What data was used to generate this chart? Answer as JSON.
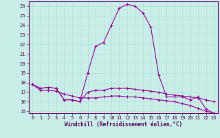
{
  "xlabel": "Windchill (Refroidissement éolien,°C)",
  "background_color": "#c8eee8",
  "line_color": "#990099",
  "grid_color": "#b8ddd8",
  "ylim": [
    14.8,
    26.5
  ],
  "xlim": [
    -0.5,
    23.5
  ],
  "yticks": [
    15,
    16,
    17,
    18,
    19,
    20,
    21,
    22,
    23,
    24,
    25,
    26
  ],
  "xticks": [
    0,
    1,
    2,
    3,
    4,
    5,
    6,
    7,
    8,
    9,
    10,
    11,
    12,
    13,
    14,
    15,
    16,
    17,
    18,
    19,
    20,
    21,
    22,
    23
  ],
  "hours": [
    0,
    1,
    2,
    3,
    4,
    5,
    6,
    7,
    8,
    9,
    10,
    11,
    12,
    13,
    14,
    15,
    16,
    17,
    18,
    19,
    20,
    21,
    22,
    23
  ],
  "temp": [
    17.8,
    17.4,
    17.5,
    17.4,
    16.2,
    16.2,
    16.0,
    19.0,
    21.8,
    22.2,
    24.0,
    25.8,
    26.2,
    26.0,
    25.3,
    23.8,
    18.8,
    16.5,
    16.5,
    16.5,
    16.2,
    16.5,
    15.2,
    14.8
  ],
  "windchill": [
    17.8,
    17.4,
    17.5,
    17.4,
    16.2,
    16.2,
    16.0,
    17.0,
    17.2,
    17.2,
    17.4,
    17.4,
    17.4,
    17.3,
    17.2,
    17.1,
    17.0,
    16.8,
    16.7,
    16.6,
    16.5,
    16.4,
    16.2,
    16.0
  ],
  "apparent": [
    17.8,
    17.2,
    17.2,
    17.1,
    16.8,
    16.6,
    16.4,
    16.4,
    16.4,
    16.5,
    16.6,
    16.6,
    16.5,
    16.5,
    16.4,
    16.3,
    16.2,
    16.1,
    16.0,
    15.8,
    15.6,
    15.3,
    15.0,
    14.8
  ],
  "xlabel_fontsize": 5.5,
  "tick_fontsize": 5.0,
  "marker_size": 3,
  "linewidth": 0.8
}
